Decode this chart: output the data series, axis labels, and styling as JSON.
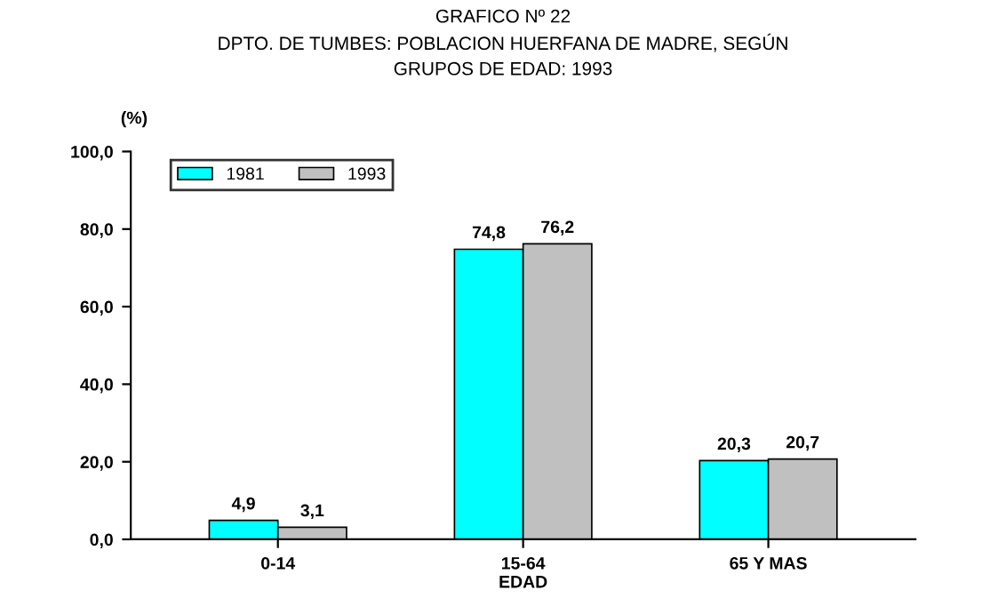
{
  "chart_data": {
    "type": "bar",
    "title": "GRAFICO Nº 22\nDPTO. DE TUMBES: POBLACION HUERFANA DE MADRE, SEGÚN\nGRUPOS DE EDAD: 1993",
    "ylabel": "(%)",
    "xlabel": "EDAD",
    "categories": [
      "0-14",
      "15-64",
      "65 Y MAS"
    ],
    "series": [
      {
        "name": "1981",
        "color": "#00ffff",
        "values": [
          4.9,
          74.8,
          20.3
        ],
        "value_labels": [
          "4,9",
          "74,8",
          "20,3"
        ]
      },
      {
        "name": "1993",
        "color": "#c0c0c0",
        "values": [
          3.1,
          76.2,
          20.7
        ],
        "value_labels": [
          "3,1",
          "76,2",
          "20,7"
        ]
      }
    ],
    "ylim": [
      0,
      100
    ],
    "yticks": [
      {
        "value": 0,
        "label": "0,0"
      },
      {
        "value": 20,
        "label": "20,0"
      },
      {
        "value": 40,
        "label": "40,0"
      },
      {
        "value": 60,
        "label": "60,0"
      },
      {
        "value": 80,
        "label": "80,0"
      },
      {
        "value": 100,
        "label": "100,0"
      }
    ],
    "legend": "top left"
  }
}
